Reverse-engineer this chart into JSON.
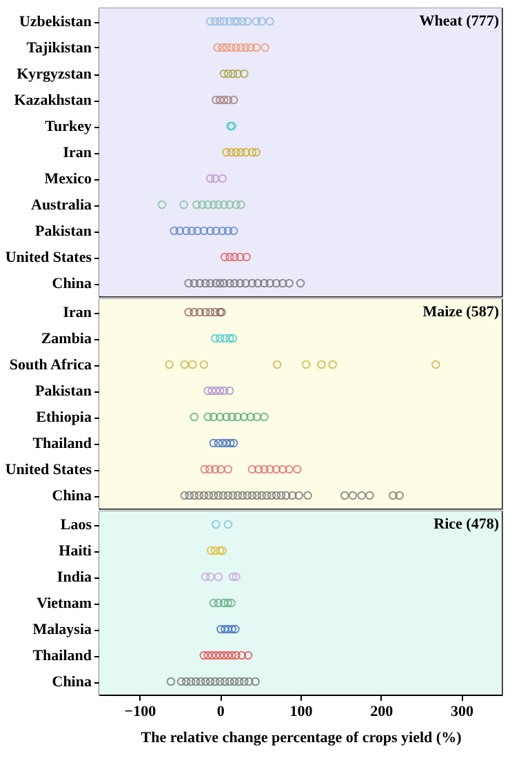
{
  "chart_data": [
    {
      "type": "scatter",
      "orientation": "horizontal",
      "marker": "circle",
      "grid": false,
      "legend": false,
      "tick_labels": "y",
      "xlim": [
        -150,
        350
      ],
      "xticks": [
        -100,
        0,
        100,
        200,
        300
      ],
      "categories": [
        "Uzbekistan",
        "Tajikistan",
        "Kyrgyzstan",
        "Kazakhstan",
        "Turkey",
        "Iran",
        "Mexico",
        "Australia",
        "Pakistan",
        "United States",
        "China"
      ],
      "bands": [
        {
          "axis": "y",
          "from": "Uzbekistan",
          "to": "China",
          "label": "Wheat (777)",
          "color": "#eaeafb"
        }
      ],
      "series": [
        {
          "color": "#8fb8dc",
          "x": [
            "Uzbekistan",
            "Uzbekistan",
            "Uzbekistan",
            "Uzbekistan",
            "Uzbekistan",
            "Uzbekistan",
            "Uzbekistan",
            "Uzbekistan",
            "Uzbekistan",
            "Uzbekistan",
            "Uzbekistan",
            "Uzbekistan"
          ],
          "values": [
            -12,
            -6,
            0,
            5,
            12,
            18,
            22,
            28,
            34,
            45,
            52,
            62
          ]
        },
        {
          "color": "#f0926a",
          "x": [
            "Tajikistan",
            "Tajikistan",
            "Tajikistan",
            "Tajikistan",
            "Tajikistan",
            "Tajikistan",
            "Tajikistan",
            "Tajikistan",
            "Tajikistan",
            "Tajikistan"
          ],
          "values": [
            -3,
            3,
            8,
            14,
            20,
            26,
            32,
            38,
            45,
            56
          ]
        },
        {
          "color": "#a8a040",
          "x": [
            "Kyrgyzstan",
            "Kyrgyzstan",
            "Kyrgyzstan",
            "Kyrgyzstan",
            "Kyrgyzstan"
          ],
          "values": [
            5,
            10,
            16,
            22,
            30
          ]
        },
        {
          "color": "#a07a78",
          "x": [
            "Kazakhstan",
            "Kazakhstan",
            "Kazakhstan",
            "Kazakhstan",
            "Kazakhstan"
          ],
          "values": [
            -5,
            0,
            5,
            10,
            17
          ]
        },
        {
          "color": "#40c8c8",
          "x": [
            "Turkey",
            "Turkey"
          ],
          "values": [
            13,
            15
          ]
        },
        {
          "color": "#d0a820",
          "x": [
            "Iran",
            "Iran",
            "Iran",
            "Iran",
            "Iran",
            "Iran",
            "Iran"
          ],
          "values": [
            8,
            14,
            20,
            26,
            32,
            40,
            45
          ]
        },
        {
          "color": "#c090d0",
          "x": [
            "Mexico",
            "Mexico",
            "Mexico"
          ],
          "values": [
            -12,
            -6,
            3
          ]
        },
        {
          "color": "#80c098",
          "x": [
            "Australia",
            "Australia",
            "Australia",
            "Australia",
            "Australia",
            "Australia",
            "Australia",
            "Australia",
            "Australia",
            "Australia",
            "Australia"
          ],
          "values": [
            -72,
            -45,
            -29,
            -22,
            -15,
            -8,
            -2,
            5,
            12,
            20,
            26
          ]
        },
        {
          "color": "#5a80c8",
          "x": [
            "Pakistan",
            "Pakistan",
            "Pakistan",
            "Pakistan",
            "Pakistan",
            "Pakistan",
            "Pakistan",
            "Pakistan",
            "Pakistan",
            "Pakistan",
            "Pakistan"
          ],
          "values": [
            -57,
            -50,
            -42,
            -35,
            -28,
            -20,
            -12,
            -5,
            3,
            10,
            17
          ]
        },
        {
          "color": "#e05a5a",
          "x": [
            "United States",
            "United States",
            "United States",
            "United States",
            "United States"
          ],
          "values": [
            6,
            12,
            18,
            25,
            33
          ]
        },
        {
          "color": "#707070",
          "x": [
            "China",
            "China",
            "China",
            "China",
            "China",
            "China",
            "China",
            "China",
            "China",
            "China",
            "China",
            "China",
            "China",
            "China",
            "China",
            "China",
            "China",
            "China",
            "China",
            "China"
          ],
          "values": [
            -39,
            -32,
            -25,
            -18,
            -12,
            -5,
            0,
            5,
            12,
            18,
            25,
            32,
            40,
            47,
            55,
            62,
            70,
            78,
            86,
            100
          ]
        }
      ]
    },
    {
      "type": "scatter",
      "orientation": "horizontal",
      "marker": "circle",
      "grid": false,
      "legend": false,
      "tick_labels": "y",
      "xlim": [
        -150,
        350
      ],
      "xticks": [
        -100,
        0,
        100,
        200,
        300
      ],
      "categories": [
        "Iran",
        "Zambia",
        "South Africa",
        "Pakistan",
        "Ethiopia",
        "Thailand",
        "United States",
        "China"
      ],
      "bands": [
        {
          "axis": "y",
          "from": "Iran",
          "to": "China",
          "label": "Maize (587)",
          "color": "#fdfde6"
        }
      ],
      "series": [
        {
          "color": "#8a6060",
          "x": [
            "Iran",
            "Iran",
            "Iran",
            "Iran",
            "Iran",
            "Iran",
            "Iran",
            "Iran"
          ],
          "values": [
            -39,
            -32,
            -25,
            -18,
            -12,
            -6,
            0,
            2
          ]
        },
        {
          "color": "#40c8c8",
          "x": [
            "Zambia",
            "Zambia",
            "Zambia",
            "Zambia",
            "Zambia"
          ],
          "values": [
            -6,
            0,
            6,
            12,
            16
          ]
        },
        {
          "color": "#c8b040",
          "x": [
            "South Africa",
            "South Africa",
            "South Africa",
            "South Africa",
            "South Africa",
            "South Africa",
            "South Africa",
            "South Africa",
            "South Africa"
          ],
          "values": [
            -63,
            -44,
            -34,
            -20,
            71,
            107,
            126,
            140,
            268
          ]
        },
        {
          "color": "#a888d0",
          "x": [
            "Pakistan",
            "Pakistan",
            "Pakistan",
            "Pakistan",
            "Pakistan",
            "Pakistan"
          ],
          "values": [
            -15,
            -10,
            -5,
            0,
            5,
            12
          ]
        },
        {
          "color": "#50a878",
          "x": [
            "Ethiopia",
            "Ethiopia",
            "Ethiopia",
            "Ethiopia",
            "Ethiopia",
            "Ethiopia",
            "Ethiopia",
            "Ethiopia",
            "Ethiopia",
            "Ethiopia",
            "Ethiopia"
          ],
          "values": [
            -32,
            -15,
            -8,
            0,
            8,
            15,
            22,
            30,
            38,
            46,
            55
          ]
        },
        {
          "color": "#3a68c0",
          "x": [
            "Thailand",
            "Thailand",
            "Thailand",
            "Thailand",
            "Thailand",
            "Thailand"
          ],
          "values": [
            -8,
            -2,
            3,
            8,
            13,
            17
          ]
        },
        {
          "color": "#e06a6a",
          "x": [
            "United States",
            "United States",
            "United States",
            "United States",
            "United States",
            "United States",
            "United States",
            "United States",
            "United States",
            "United States",
            "United States",
            "United States",
            "United States"
          ],
          "values": [
            -19,
            -13,
            -6,
            1,
            10,
            40,
            48,
            55,
            62,
            70,
            78,
            86,
            96
          ]
        },
        {
          "color": "#707070",
          "x": [
            "China",
            "China",
            "China",
            "China",
            "China",
            "China",
            "China",
            "China",
            "China",
            "China",
            "China",
            "China",
            "China",
            "China",
            "China",
            "China",
            "China",
            "China",
            "China",
            "China",
            "China",
            "China",
            "China",
            "China",
            "China",
            "China",
            "China",
            "China",
            "China",
            "China",
            "China"
          ],
          "values": [
            -44,
            -38,
            -32,
            -26,
            -20,
            -14,
            -8,
            -2,
            4,
            10,
            16,
            22,
            28,
            34,
            40,
            46,
            52,
            58,
            64,
            70,
            76,
            82,
            90,
            98,
            109,
            155,
            165,
            176,
            186,
            215,
            223
          ]
        }
      ]
    },
    {
      "type": "scatter",
      "orientation": "horizontal",
      "marker": "circle",
      "grid": false,
      "legend": false,
      "xlabel": "The relative change percentage of crops yield (%)",
      "xlim": [
        -150,
        350
      ],
      "xticks": [
        -100,
        0,
        100,
        200,
        300
      ],
      "categories": [
        "Laos",
        "Haiti",
        "India",
        "Vietnam",
        "Malaysia",
        "Thailand",
        "China"
      ],
      "bands": [
        {
          "axis": "y",
          "from": "Laos",
          "to": "China",
          "label": "Rice (478)",
          "color": "#e4f9f3"
        }
      ],
      "series": [
        {
          "color": "#70c0e0",
          "x": [
            "Laos",
            "Laos"
          ],
          "values": [
            -5,
            10
          ]
        },
        {
          "color": "#e0b830",
          "x": [
            "Haiti",
            "Haiti",
            "Haiti",
            "Haiti"
          ],
          "values": [
            -11,
            -6,
            0,
            3
          ]
        },
        {
          "color": "#c8a0e0",
          "x": [
            "India",
            "India",
            "India",
            "India",
            "India"
          ],
          "values": [
            -18,
            -12,
            -2,
            16,
            20
          ]
        },
        {
          "color": "#60a880",
          "x": [
            "Vietnam",
            "Vietnam",
            "Vietnam",
            "Vietnam",
            "Vietnam"
          ],
          "values": [
            -8,
            -2,
            5,
            10,
            14
          ]
        },
        {
          "color": "#3a68c0",
          "x": [
            "Malaysia",
            "Malaysia",
            "Malaysia",
            "Malaysia",
            "Malaysia"
          ],
          "values": [
            1,
            6,
            10,
            15,
            19
          ]
        },
        {
          "color": "#e04848",
          "x": [
            "Thailand",
            "Thailand",
            "Thailand",
            "Thailand",
            "Thailand",
            "Thailand",
            "Thailand",
            "Thailand",
            "Thailand",
            "Thailand",
            "Thailand"
          ],
          "values": [
            -20,
            -15,
            -10,
            -5,
            0,
            5,
            10,
            15,
            20,
            27,
            35
          ]
        },
        {
          "color": "#707070",
          "x": [
            "China",
            "China",
            "China",
            "China",
            "China",
            "China",
            "China",
            "China",
            "China",
            "China",
            "China",
            "China",
            "China",
            "China",
            "China",
            "China",
            "China"
          ],
          "values": [
            -61,
            -48,
            -42,
            -36,
            -30,
            -24,
            -18,
            -12,
            -6,
            0,
            6,
            12,
            18,
            24,
            30,
            36,
            44
          ]
        }
      ]
    }
  ]
}
